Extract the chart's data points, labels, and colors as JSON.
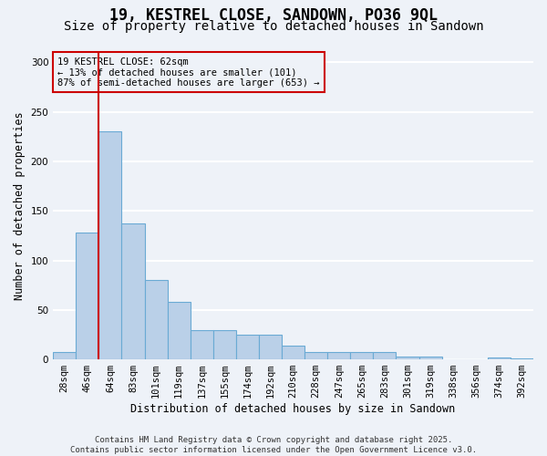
{
  "title": "19, KESTREL CLOSE, SANDOWN, PO36 9QL",
  "subtitle": "Size of property relative to detached houses in Sandown",
  "xlabel": "Distribution of detached houses by size in Sandown",
  "ylabel": "Number of detached properties",
  "categories": [
    "28sqm",
    "46sqm",
    "64sqm",
    "83sqm",
    "101sqm",
    "119sqm",
    "137sqm",
    "155sqm",
    "174sqm",
    "192sqm",
    "210sqm",
    "228sqm",
    "247sqm",
    "265sqm",
    "283sqm",
    "301sqm",
    "319sqm",
    "338sqm",
    "356sqm",
    "374sqm",
    "392sqm"
  ],
  "values": [
    7,
    128,
    230,
    137,
    80,
    58,
    30,
    30,
    25,
    25,
    14,
    7,
    7,
    7,
    7,
    3,
    3,
    0,
    0,
    2,
    1
  ],
  "bar_color": "#bad0e8",
  "bar_edge_color": "#6aaad4",
  "red_line_x": 1.5,
  "red_line_color": "#cc0000",
  "annotation_title": "19 KESTREL CLOSE: 62sqm",
  "annotation_line1": "← 13% of detached houses are smaller (101)",
  "annotation_line2": "87% of semi-detached houses are larger (653) →",
  "ylim": [
    0,
    310
  ],
  "yticks": [
    0,
    50,
    100,
    150,
    200,
    250,
    300
  ],
  "footnote1": "Contains HM Land Registry data © Crown copyright and database right 2025.",
  "footnote2": "Contains public sector information licensed under the Open Government Licence v3.0.",
  "background_color": "#eef2f8",
  "grid_color": "#ffffff",
  "title_fontsize": 12,
  "subtitle_fontsize": 10,
  "axis_label_fontsize": 8.5,
  "tick_fontsize": 7.5,
  "footnote_fontsize": 6.5
}
